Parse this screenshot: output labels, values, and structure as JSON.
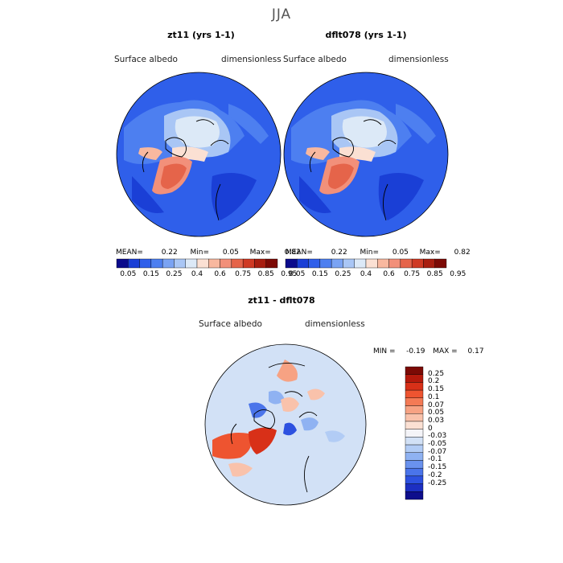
{
  "page": {
    "season": "JJA"
  },
  "panels": [
    {
      "title": "zt11 (yrs 1-1)",
      "variable": "Surface albedo",
      "units": "dimensionless",
      "stats": {
        "mean_label": "MEAN=",
        "mean": "0.22",
        "min_label": "Min=",
        "min": "0.05",
        "max_label": "Max=",
        "max": "0.82"
      }
    },
    {
      "title": "dflt078 (yrs 1-1)",
      "variable": "Surface albedo",
      "units": "dimensionless",
      "stats": {
        "mean_label": "MEAN=",
        "mean": "0.22",
        "min_label": "Min=",
        "min": "0.05",
        "max_label": "Max=",
        "max": "0.82"
      }
    }
  ],
  "colorbar_horizontal": {
    "colors": [
      "#0b0b8c",
      "#1a3fd6",
      "#2f5fea",
      "#4d7ff0",
      "#7aa3f3",
      "#a9c6f5",
      "#dce9f7",
      "#fbe0d3",
      "#f8b89f",
      "#f2907a",
      "#e5644a",
      "#cf3a24",
      "#a81e10",
      "#7c0a05"
    ],
    "ticks": [
      "0.05",
      "0.15",
      "0.25",
      "0.4",
      "0.6",
      "0.75",
      "0.85",
      "0.95"
    ]
  },
  "diff_panel": {
    "title": "zt11 - dflt078",
    "variable": "Surface albedo",
    "units": "dimensionless",
    "min_label": "MIN =",
    "min": "-0.19",
    "max_label": "MAX =",
    "max": "0.17"
  },
  "colorbar_vertical": {
    "colors": [
      "#7c0a05",
      "#b5190c",
      "#d83018",
      "#ee5430",
      "#f47a55",
      "#f7a283",
      "#f9c2ab",
      "#fbe0d3",
      "#f4f4f8",
      "#d2e1f6",
      "#b2ccf5",
      "#8fb2f2",
      "#6a92ee",
      "#4a74ea",
      "#2d51e0",
      "#1c2fc2",
      "#0e0e8c"
    ],
    "labels": [
      "0.25",
      "0.2",
      "0.15",
      "0.1",
      "0.07",
      "0.05",
      "0.03",
      "0",
      "-0.03",
      "-0.05",
      "-0.07",
      "-0.1",
      "-0.15",
      "-0.2",
      "-0.25"
    ]
  }
}
